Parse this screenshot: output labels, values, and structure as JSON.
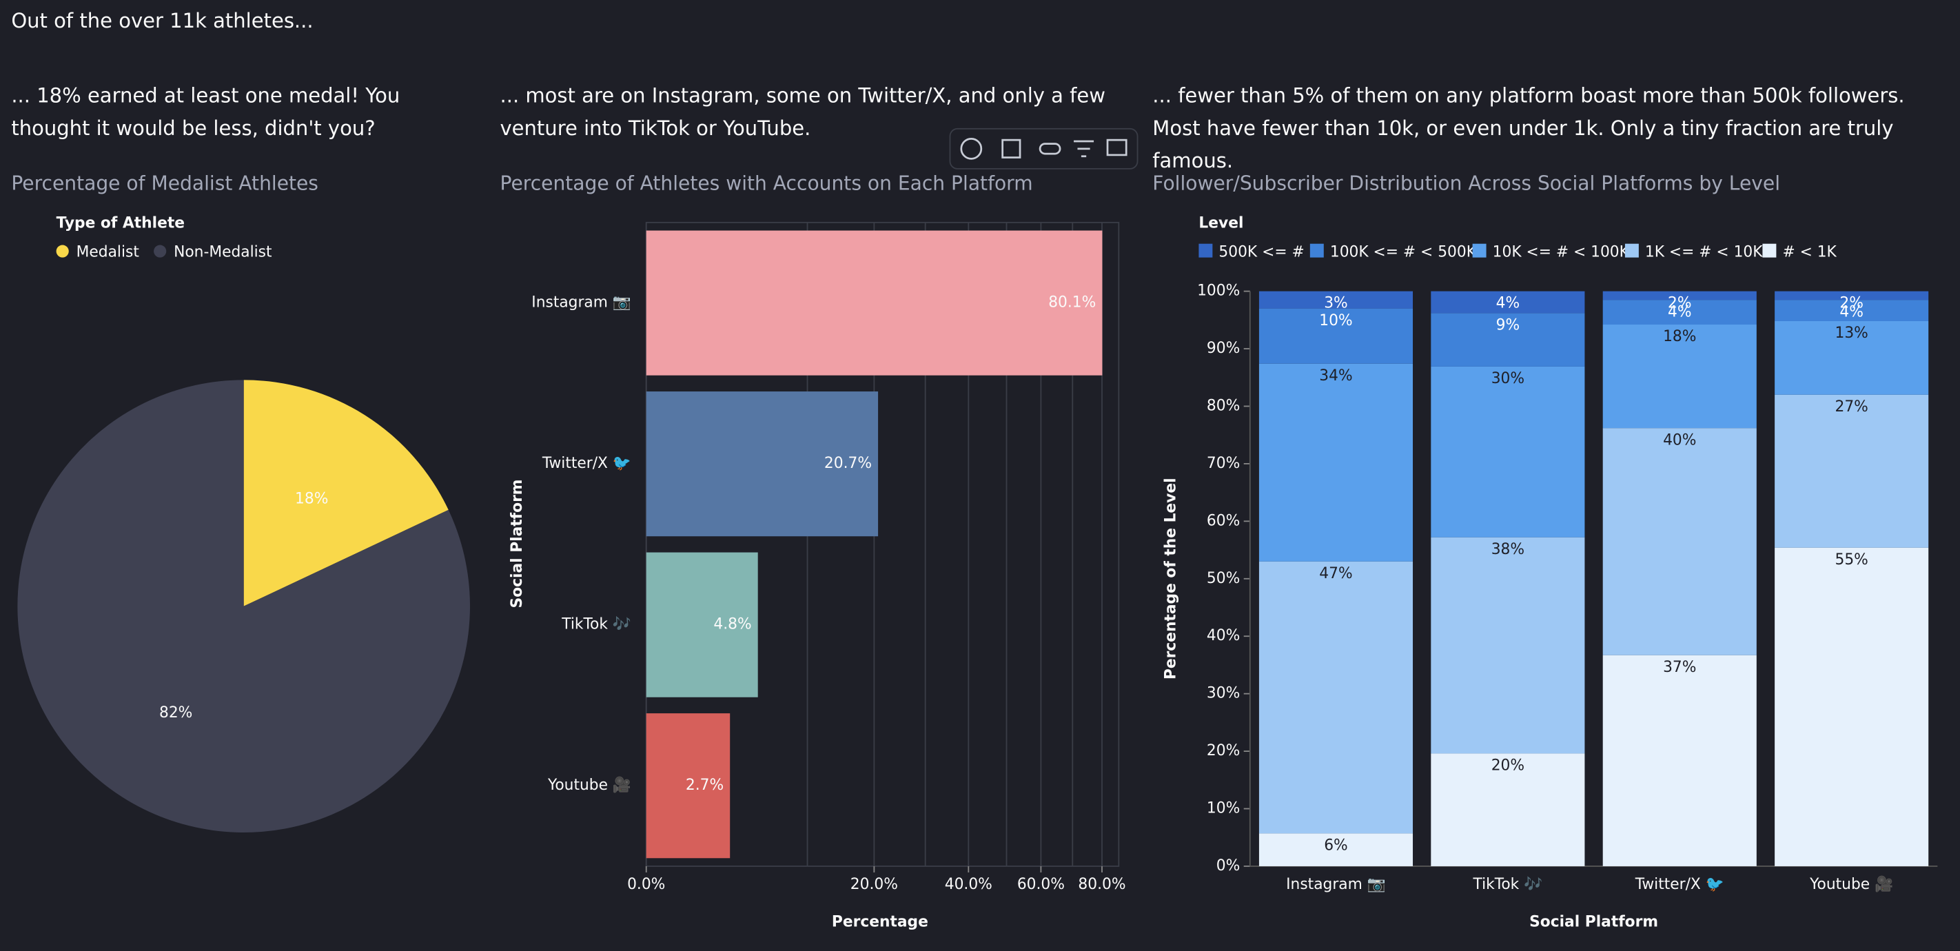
{
  "header": "Out of the over 11k athletes...",
  "captions": [
    "... 18% earned at least one medal! You thought it would be less, didn't you?",
    "... most are on Instagram, some on Twitter/X, and only a few venture into TikTok or YouTube.",
    "... fewer than 5% of them on any platform boast more than 500k followers. Most have fewer than 10k, or even under 1k. Only a tiny fraction are truly famous."
  ],
  "chart_data": [
    {
      "type": "pie",
      "title": "Percentage of Medalist Athletes",
      "legend_title": "Type of Athlete",
      "categories": [
        "Medalist",
        "Non-Medalist"
      ],
      "values": [
        18,
        82
      ],
      "value_labels": [
        "18%",
        "82%"
      ],
      "colors": [
        "#f9d84a",
        "#3f4152"
      ]
    },
    {
      "type": "bar",
      "orientation": "horizontal",
      "title": "Percentage of Athletes with Accounts on Each Platform",
      "x_label": "Percentage",
      "y_label": "Social Platform",
      "categories": [
        "Instagram 📷",
        "Twitter/X 🐦",
        "TikTok 🎶",
        "Youtube 🎥"
      ],
      "values": [
        80.1,
        20.7,
        4.8,
        2.7
      ],
      "value_labels": [
        "80.1%",
        "20.7%",
        "4.8%",
        "2.7%"
      ],
      "colors": [
        "#f0a0a6",
        "#5677a4",
        "#83b6b2",
        "#d6605b"
      ],
      "xscale": "sqrt",
      "xlim": [
        0,
        86
      ],
      "xticks": [
        {
          "value": 0,
          "label": "0.0%"
        },
        {
          "value": 20,
          "label": "20.0%"
        },
        {
          "value": 40,
          "label": "40.0%"
        },
        {
          "value": 60,
          "label": "60.0%"
        },
        {
          "value": 80,
          "label": "80.0%"
        }
      ],
      "minor_xticks": [
        10,
        30,
        50,
        70
      ],
      "grid": true
    },
    {
      "type": "bar",
      "stacked": true,
      "title": "Follower/Subscriber Distribution Across Social Platforms by Level",
      "x_label": "Social Platform",
      "y_label": "Percentage of the Level",
      "legend_title": "Level",
      "categories": [
        "Instagram 📷",
        "TikTok 🎶",
        "Twitter/X 🐦",
        "Youtube 🎥"
      ],
      "series": [
        {
          "name": "500K <= #",
          "color": "#3366c5",
          "values": [
            3.0,
            3.8,
            1.5,
            1.5
          ],
          "value_labels": [
            "3%",
            "4%",
            "2%",
            "2%"
          ]
        },
        {
          "name": "100K <= # < 500K",
          "color": "#3f82d9",
          "values": [
            9.6,
            9.3,
            4.3,
            3.7
          ],
          "value_labels": [
            "10%",
            "9%",
            "4%",
            "4%"
          ]
        },
        {
          "name": "10K <= # < 100K",
          "color": "#5aa0ec",
          "values": [
            34.4,
            29.7,
            18.0,
            12.8
          ],
          "value_labels": [
            "34%",
            "30%",
            "18%",
            "13%"
          ]
        },
        {
          "name": "1K <= # < 10K",
          "color": "#9ec8f4",
          "values": [
            47.3,
            37.6,
            39.5,
            26.6
          ],
          "value_labels": [
            "47%",
            "38%",
            "40%",
            "27%"
          ]
        },
        {
          "name": "# < 1K",
          "color": "#e6f1fc",
          "values": [
            5.7,
            19.6,
            36.7,
            55.4
          ],
          "value_labels": [
            "6%",
            "20%",
            "37%",
            "55%"
          ]
        }
      ],
      "ylim": [
        0,
        100
      ],
      "yticks": [
        {
          "value": 0,
          "label": "0%"
        },
        {
          "value": 10,
          "label": "10%"
        },
        {
          "value": 20,
          "label": "20%"
        },
        {
          "value": 30,
          "label": "30%"
        },
        {
          "value": 40,
          "label": "40%"
        },
        {
          "value": 50,
          "label": "50%"
        },
        {
          "value": 60,
          "label": "60%"
        },
        {
          "value": 70,
          "label": "70%"
        },
        {
          "value": 80,
          "label": "80%"
        },
        {
          "value": 90,
          "label": "90%"
        },
        {
          "value": 100,
          "label": "100%"
        }
      ],
      "grid": false
    }
  ]
}
